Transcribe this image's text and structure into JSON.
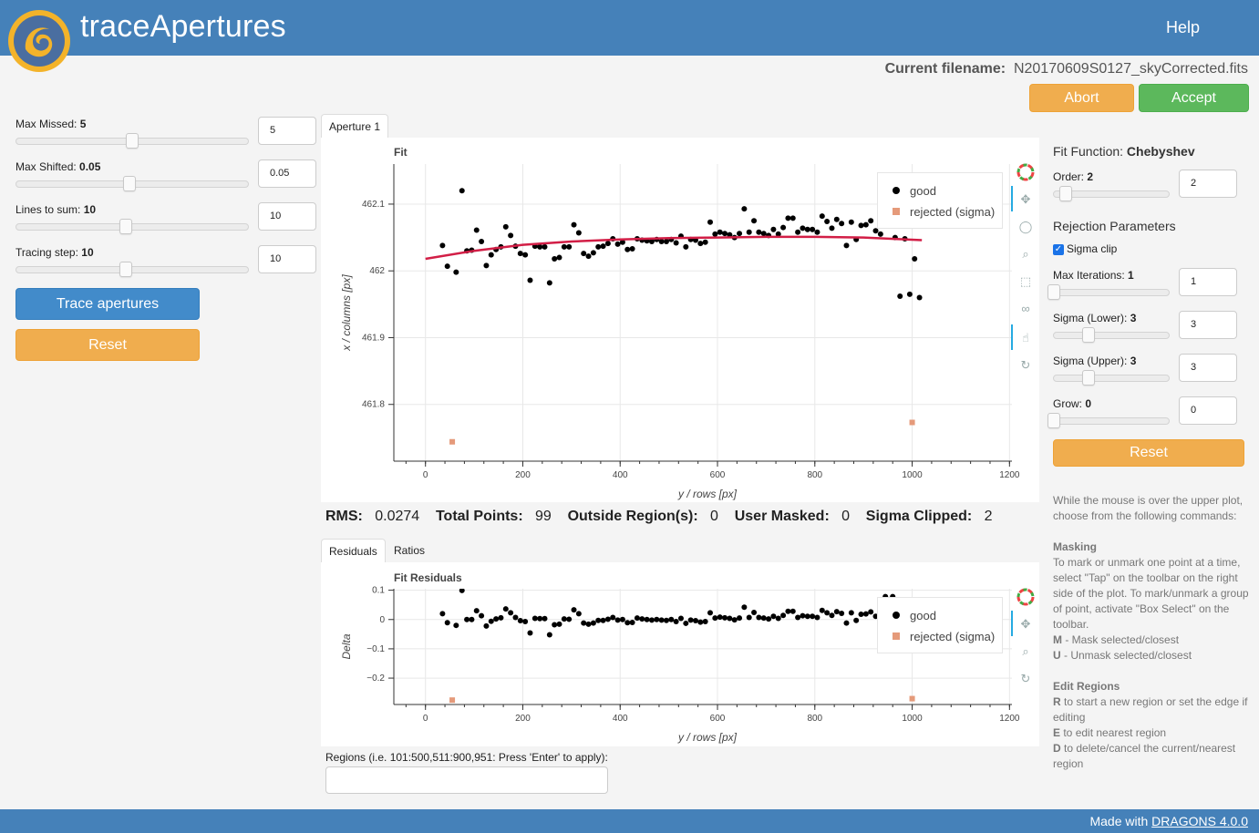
{
  "header": {
    "title": "traceApertures",
    "help_label": "Help"
  },
  "filename": {
    "label": "Current filename:",
    "value": "N20170609S0127_skyCorrected.fits"
  },
  "actions": {
    "abort_label": "Abort",
    "accept_label": "Accept"
  },
  "left_panel": {
    "sliders": [
      {
        "label": "Max Missed:",
        "value": "5",
        "input": "5",
        "fraction": 0.5
      },
      {
        "label": "Max Shifted:",
        "value": "0.05",
        "input": "0.05",
        "fraction": 0.49
      },
      {
        "label": "Lines to sum:",
        "value": "10",
        "input": "10",
        "fraction": 0.475
      },
      {
        "label": "Tracing step:",
        "value": "10",
        "input": "10",
        "fraction": 0.475
      }
    ],
    "trace_button": "Trace apertures",
    "reset_button": "Reset"
  },
  "tabs": {
    "top": [
      "Aperture 1"
    ],
    "bottom": [
      "Residuals",
      "Ratios"
    ]
  },
  "fit_plot": {
    "title": "Fit",
    "xlabel": "y / rows [px]",
    "ylabel": "x / columns [px]",
    "x_ticks": [
      "0",
      "200",
      "400",
      "600",
      "800",
      "1000",
      "1200"
    ],
    "y_ticks": [
      "462.1",
      "462",
      "461.9",
      "461.8"
    ],
    "legend": [
      "good",
      "rejected (sigma)"
    ]
  },
  "residual_plot": {
    "title": "Fit Residuals",
    "xlabel": "y / rows [px]",
    "ylabel": "Delta",
    "x_ticks": [
      "0",
      "200",
      "400",
      "600",
      "800",
      "1000",
      "1200"
    ],
    "y_ticks": [
      "0.1",
      "0",
      "−0.1",
      "−0.2"
    ],
    "legend": [
      "good",
      "rejected (sigma)"
    ]
  },
  "stats": {
    "rms_label": "RMS:",
    "rms_value": "0.0274",
    "total_label": "Total Points:",
    "total_value": "99",
    "outside_label": "Outside Region(s):",
    "outside_value": "0",
    "masked_label": "User Masked:",
    "masked_value": "0",
    "clipped_label": "Sigma Clipped:",
    "clipped_value": "2"
  },
  "regions": {
    "label": "Regions (i.e. 101:500,511:900,951: Press 'Enter' to apply):",
    "value": ""
  },
  "right_panel": {
    "fit_function_label": "Fit Function:",
    "fit_function_value": "Chebyshev",
    "order": {
      "label": "Order:",
      "value": "2",
      "input": "2",
      "fraction": 0.08
    },
    "rejection_title": "Rejection Parameters",
    "sigma_clip_label": "Sigma clip",
    "sigma_clip_checked": true,
    "sliders": [
      {
        "label": "Max Iterations:",
        "value": "1",
        "input": "1",
        "fraction": 0.0
      },
      {
        "label": "Sigma (Lower):",
        "value": "3",
        "input": "3",
        "fraction": 0.3
      },
      {
        "label": "Sigma (Upper):",
        "value": "3",
        "input": "3",
        "fraction": 0.3
      },
      {
        "label": "Grow:",
        "value": "0",
        "input": "0",
        "fraction": 0.0
      }
    ],
    "reset_button": "Reset"
  },
  "help_text": {
    "intro": "While the mouse is over the upper plot, choose from the following commands:",
    "masking_title": "Masking",
    "masking_text": "To mark or unmark one point at a time, select \"Tap\" on the toolbar on the right side of the plot. To mark/unmark a group of point, activate \"Box Select\" on the toolbar.",
    "m_key": "M",
    "m_text": " - Mask selected/closest",
    "u_key": "U",
    "u_text": " - Unmask selected/closest",
    "regions_title": "Edit Regions",
    "r_key": "R",
    "r_text": " to start a new region or set the edge if editing",
    "e_key": "E",
    "e_text": " to edit nearest region",
    "d_key": "D",
    "d_text": " to delete/cancel the current/nearest region"
  },
  "footer": {
    "prefix": "Made with ",
    "link": "DRAGONS 4.0.0"
  },
  "colors": {
    "header": "#4581b9",
    "fit_line": "#d21e46",
    "good": "#000000",
    "rejected": "#e59a7a",
    "orange_button": "#f0ad4e",
    "green_button": "#5cb85c",
    "blue_button": "#428bca"
  },
  "chart_data": [
    {
      "type": "scatter",
      "title": "Fit",
      "xlabel": "y / rows [px]",
      "ylabel": "x / columns [px]",
      "xlim": [
        -65,
        1205
      ],
      "ylim": [
        461.715,
        462.16
      ],
      "legend_position": "top-right",
      "grid": true,
      "series": [
        {
          "name": "good",
          "points": [
            [
              35,
              462.038
            ],
            [
              45,
              462.007
            ],
            [
              63,
              461.998
            ],
            [
              75,
              462.12
            ],
            [
              85,
              462.03
            ],
            [
              95,
              462.031
            ],
            [
              105,
              462.061
            ],
            [
              115,
              462.044
            ],
            [
              125,
              462.008
            ],
            [
              135,
              462.024
            ],
            [
              145,
              462.032
            ],
            [
              155,
              462.036
            ],
            [
              165,
              462.066
            ],
            [
              175,
              462.053
            ],
            [
              185,
              462.037
            ],
            [
              195,
              462.026
            ],
            [
              205,
              462.024
            ],
            [
              215,
              461.986
            ],
            [
              225,
              462.037
            ],
            [
              235,
              462.036
            ],
            [
              245,
              462.036
            ],
            [
              255,
              461.982
            ],
            [
              265,
              462.018
            ],
            [
              275,
              462.02
            ],
            [
              285,
              462.036
            ],
            [
              295,
              462.036
            ],
            [
              305,
              462.069
            ],
            [
              315,
              462.057
            ],
            [
              325,
              462.026
            ],
            [
              335,
              462.022
            ],
            [
              345,
              462.027
            ],
            [
              355,
              462.036
            ],
            [
              365,
              462.037
            ],
            [
              375,
              462.041
            ],
            [
              385,
              462.048
            ],
            [
              395,
              462.04
            ],
            [
              405,
              462.043
            ],
            [
              415,
              462.032
            ],
            [
              425,
              462.033
            ],
            [
              435,
              462.048
            ],
            [
              445,
              462.046
            ],
            [
              455,
              462.045
            ],
            [
              465,
              462.044
            ],
            [
              475,
              462.047
            ],
            [
              485,
              462.044
            ],
            [
              495,
              462.044
            ],
            [
              505,
              462.047
            ],
            [
              515,
              462.042
            ],
            [
              525,
              462.052
            ],
            [
              535,
              462.036
            ],
            [
              545,
              462.047
            ],
            [
              555,
              462.046
            ],
            [
              565,
              462.041
            ],
            [
              575,
              462.043
            ],
            [
              585,
              462.073
            ],
            [
              595,
              462.055
            ],
            [
              605,
              462.058
            ],
            [
              615,
              462.056
            ],
            [
              625,
              462.054
            ],
            [
              635,
              462.05
            ],
            [
              645,
              462.056
            ],
            [
              655,
              462.093
            ],
            [
              665,
              462.058
            ],
            [
              675,
              462.075
            ],
            [
              685,
              462.058
            ],
            [
              695,
              462.056
            ],
            [
              705,
              462.053
            ],
            [
              715,
              462.062
            ],
            [
              725,
              462.055
            ],
            [
              735,
              462.065
            ],
            [
              745,
              462.079
            ],
            [
              755,
              462.079
            ],
            [
              765,
              462.058
            ],
            [
              775,
              462.064
            ],
            [
              785,
              462.062
            ],
            [
              795,
              462.062
            ],
            [
              805,
              462.058
            ],
            [
              815,
              462.082
            ],
            [
              825,
              462.074
            ],
            [
              835,
              462.064
            ],
            [
              845,
              462.077
            ],
            [
              855,
              462.071
            ],
            [
              865,
              462.038
            ],
            [
              875,
              462.073
            ],
            [
              885,
              462.047
            ],
            [
              895,
              462.068
            ],
            [
              905,
              462.069
            ],
            [
              915,
              462.075
            ],
            [
              925,
              462.06
            ],
            [
              935,
              462.055
            ],
            [
              945,
              462.125
            ],
            [
              960,
              462.125
            ],
            [
              965,
              462.05
            ],
            [
              975,
              461.962
            ],
            [
              985,
              462.048
            ],
            [
              995,
              461.965
            ],
            [
              1005,
              462.018
            ],
            [
              1015,
              461.96
            ]
          ]
        },
        {
          "name": "rejected (sigma)",
          "points": [
            [
              55,
              461.744
            ],
            [
              1000,
              461.773
            ]
          ]
        },
        {
          "name": "fit",
          "type": "line",
          "points": [
            [
              0,
              462.018
            ],
            [
              100,
              462.03
            ],
            [
              200,
              462.039
            ],
            [
              300,
              462.044
            ],
            [
              400,
              462.047
            ],
            [
              500,
              462.049
            ],
            [
              600,
              462.05
            ],
            [
              700,
              462.051
            ],
            [
              800,
              462.051
            ],
            [
              900,
              462.05
            ],
            [
              1020,
              462.046
            ]
          ]
        }
      ]
    },
    {
      "type": "scatter",
      "title": "Fit Residuals",
      "xlabel": "y / rows [px]",
      "ylabel": "Delta",
      "xlim": [
        -65,
        1205
      ],
      "ylim": [
        -0.29,
        0.105
      ],
      "legend_position": "top-right",
      "grid": true,
      "series": [
        {
          "name": "good",
          "points": [
            [
              35,
              0.02
            ],
            [
              45,
              -0.011
            ],
            [
              63,
              -0.02
            ],
            [
              75,
              0.099
            ],
            [
              85,
              0.0
            ],
            [
              95,
              0.0
            ],
            [
              105,
              0.03
            ],
            [
              115,
              0.013
            ],
            [
              125,
              -0.022
            ],
            [
              135,
              -0.006
            ],
            [
              145,
              0.002
            ],
            [
              155,
              0.006
            ],
            [
              165,
              0.036
            ],
            [
              175,
              0.023
            ],
            [
              185,
              0.007
            ],
            [
              195,
              -0.004
            ],
            [
              205,
              -0.007
            ],
            [
              215,
              -0.046
            ],
            [
              225,
              0.004
            ],
            [
              235,
              0.003
            ],
            [
              245,
              0.003
            ],
            [
              255,
              -0.052
            ],
            [
              265,
              -0.018
            ],
            [
              275,
              -0.016
            ],
            [
              285,
              0.002
            ],
            [
              295,
              0.001
            ],
            [
              305,
              0.033
            ],
            [
              315,
              0.02
            ],
            [
              325,
              -0.012
            ],
            [
              335,
              -0.016
            ],
            [
              345,
              -0.012
            ],
            [
              355,
              -0.003
            ],
            [
              365,
              -0.003
            ],
            [
              375,
              0.001
            ],
            [
              385,
              0.007
            ],
            [
              395,
              -0.002
            ],
            [
              405,
              0.0
            ],
            [
              415,
              -0.011
            ],
            [
              425,
              -0.01
            ],
            [
              435,
              0.005
            ],
            [
              445,
              0.002
            ],
            [
              455,
              0.0
            ],
            [
              465,
              -0.002
            ],
            [
              475,
              0.0
            ],
            [
              485,
              -0.002
            ],
            [
              495,
              -0.003
            ],
            [
              505,
              0.0
            ],
            [
              515,
              -0.007
            ],
            [
              525,
              0.004
            ],
            [
              535,
              -0.013
            ],
            [
              545,
              -0.002
            ],
            [
              555,
              -0.004
            ],
            [
              565,
              -0.009
            ],
            [
              575,
              -0.007
            ],
            [
              585,
              0.023
            ],
            [
              595,
              0.005
            ],
            [
              605,
              0.008
            ],
            [
              615,
              0.006
            ],
            [
              625,
              0.004
            ],
            [
              635,
              -0.001
            ],
            [
              645,
              0.005
            ],
            [
              655,
              0.042
            ],
            [
              665,
              0.007
            ],
            [
              675,
              0.024
            ],
            [
              685,
              0.007
            ],
            [
              695,
              0.005
            ],
            [
              705,
              0.002
            ],
            [
              715,
              0.011
            ],
            [
              725,
              0.004
            ],
            [
              735,
              0.014
            ],
            [
              745,
              0.028
            ],
            [
              755,
              0.028
            ],
            [
              765,
              0.007
            ],
            [
              775,
              0.013
            ],
            [
              785,
              0.011
            ],
            [
              795,
              0.011
            ],
            [
              805,
              0.007
            ],
            [
              815,
              0.031
            ],
            [
              825,
              0.023
            ],
            [
              835,
              0.014
            ],
            [
              845,
              0.027
            ],
            [
              855,
              0.021
            ],
            [
              865,
              -0.012
            ],
            [
              875,
              0.023
            ],
            [
              885,
              -0.003
            ],
            [
              895,
              0.018
            ],
            [
              905,
              0.019
            ],
            [
              915,
              0.026
            ],
            [
              925,
              0.011
            ],
            [
              935,
              0.007
            ],
            [
              945,
              0.078
            ],
            [
              960,
              0.078
            ],
            [
              965,
              0.004
            ],
            [
              975,
              -0.084
            ],
            [
              985,
              0.002
            ],
            [
              995,
              -0.082
            ],
            [
              1005,
              -0.028
            ],
            [
              1015,
              -0.086
            ]
          ]
        },
        {
          "name": "rejected (sigma)",
          "points": [
            [
              55,
              -0.275
            ],
            [
              1000,
              -0.27
            ]
          ]
        }
      ]
    }
  ]
}
